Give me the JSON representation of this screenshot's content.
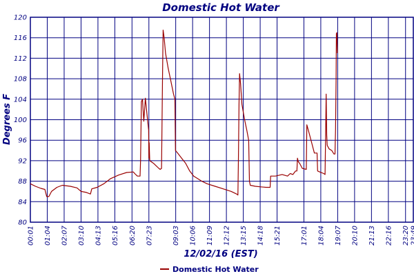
{
  "chart_data": {
    "type": "line",
    "title": "Domestic Hot Water",
    "xlabel": "12/02/16 (EST)",
    "ylabel": "Degrees F",
    "ylim": [
      80,
      120
    ],
    "y_ticks": [
      80,
      84,
      88,
      92,
      96,
      100,
      104,
      108,
      112,
      116,
      120
    ],
    "x_range": [
      1,
      1429
    ],
    "x_ticks": [
      {
        "label": "00:01",
        "minute": 1
      },
      {
        "label": "01:04",
        "minute": 64
      },
      {
        "label": "02:07",
        "minute": 127
      },
      {
        "label": "03:10",
        "minute": 190
      },
      {
        "label": "04:13",
        "minute": 253
      },
      {
        "label": "05:16",
        "minute": 316
      },
      {
        "label": "06:20",
        "minute": 380
      },
      {
        "label": "07:23",
        "minute": 443
      },
      {
        "label": "09:03",
        "minute": 543
      },
      {
        "label": "10:06",
        "minute": 606
      },
      {
        "label": "11:09",
        "minute": 669
      },
      {
        "label": "12:12",
        "minute": 732
      },
      {
        "label": "13:15",
        "minute": 795
      },
      {
        "label": "14:18",
        "minute": 858
      },
      {
        "label": "15:21",
        "minute": 921
      },
      {
        "label": "17:01",
        "minute": 1021
      },
      {
        "label": "18:04",
        "minute": 1084
      },
      {
        "label": "19:07",
        "minute": 1147
      },
      {
        "label": "20:10",
        "minute": 1210
      },
      {
        "label": "21:13",
        "minute": 1273
      },
      {
        "label": "22:16",
        "minute": 1336
      },
      {
        "label": "23:20",
        "minute": 1400
      },
      {
        "label": "23:49",
        "minute": 1429
      }
    ],
    "grid": true,
    "legend_position": "bottom-left",
    "series": [
      {
        "name": "Domestic Hot Water",
        "color": "#990000",
        "points": [
          [
            1,
            87.5
          ],
          [
            20,
            87
          ],
          [
            40,
            86.6
          ],
          [
            55,
            86.4
          ],
          [
            62,
            85
          ],
          [
            70,
            85
          ],
          [
            80,
            86
          ],
          [
            100,
            86.8
          ],
          [
            120,
            87.2
          ],
          [
            150,
            87
          ],
          [
            175,
            86.7
          ],
          [
            190,
            86
          ],
          [
            210,
            85.8
          ],
          [
            225,
            85.5
          ],
          [
            230,
            86.5
          ],
          [
            250,
            86.8
          ],
          [
            275,
            87.5
          ],
          [
            300,
            88.5
          ],
          [
            330,
            89.2
          ],
          [
            360,
            89.7
          ],
          [
            385,
            89.8
          ],
          [
            390,
            89.5
          ],
          [
            400,
            89
          ],
          [
            410,
            89
          ],
          [
            412,
            92
          ],
          [
            415,
            103.5
          ],
          [
            419,
            104
          ],
          [
            424,
            99.7
          ],
          [
            430,
            104.2
          ],
          [
            435,
            101.5
          ],
          [
            442,
            98
          ],
          [
            443,
            92.5
          ],
          [
            444,
            95.5
          ],
          [
            446,
            92
          ],
          [
            460,
            91.5
          ],
          [
            470,
            91
          ],
          [
            480,
            90.5
          ],
          [
            485,
            90.3
          ],
          [
            490,
            90.5
          ],
          [
            492,
            99
          ],
          [
            494,
            109
          ],
          [
            496,
            117.5
          ],
          [
            500,
            116
          ],
          [
            505,
            113
          ],
          [
            515,
            110
          ],
          [
            525,
            107.5
          ],
          [
            535,
            105
          ],
          [
            540,
            104
          ],
          [
            542,
            94
          ],
          [
            550,
            93.5
          ],
          [
            565,
            92.5
          ],
          [
            580,
            91.5
          ],
          [
            595,
            90
          ],
          [
            610,
            89
          ],
          [
            625,
            88.5
          ],
          [
            640,
            88
          ],
          [
            660,
            87.5
          ],
          [
            690,
            87
          ],
          [
            720,
            86.5
          ],
          [
            750,
            86
          ],
          [
            770,
            85.5
          ],
          [
            775,
            85.3
          ],
          [
            777,
            93
          ],
          [
            779,
            103
          ],
          [
            781,
            109
          ],
          [
            785,
            107
          ],
          [
            790,
            103
          ],
          [
            800,
            100
          ],
          [
            808,
            98
          ],
          [
            815,
            96
          ],
          [
            818,
            88
          ],
          [
            821,
            87.2
          ],
          [
            840,
            87
          ],
          [
            860,
            86.9
          ],
          [
            880,
            86.8
          ],
          [
            895,
            86.8
          ],
          [
            897,
            89
          ],
          [
            915,
            89
          ],
          [
            940,
            89.3
          ],
          [
            960,
            89
          ],
          [
            970,
            89.5
          ],
          [
            980,
            89.3
          ],
          [
            990,
            90
          ],
          [
            995,
            90
          ],
          [
            997,
            92.5
          ],
          [
            1000,
            91.8
          ],
          [
            1005,
            91.5
          ],
          [
            1015,
            90.5
          ],
          [
            1030,
            90.3
          ],
          [
            1032,
            99
          ],
          [
            1040,
            97.5
          ],
          [
            1050,
            95.5
          ],
          [
            1060,
            93.5
          ],
          [
            1070,
            93.5
          ],
          [
            1072,
            90
          ],
          [
            1080,
            89.8
          ],
          [
            1095,
            89.5
          ],
          [
            1100,
            89.3
          ],
          [
            1102,
            97
          ],
          [
            1104,
            105
          ],
          [
            1106,
            97
          ],
          [
            1108,
            95
          ],
          [
            1115,
            94.3
          ],
          [
            1125,
            94
          ],
          [
            1133,
            93.3
          ],
          [
            1137,
            93.3
          ],
          [
            1139,
            98
          ],
          [
            1141,
            108
          ],
          [
            1142,
            116.8
          ],
          [
            1144,
            117
          ],
          [
            1146,
            113
          ]
        ]
      }
    ]
  }
}
